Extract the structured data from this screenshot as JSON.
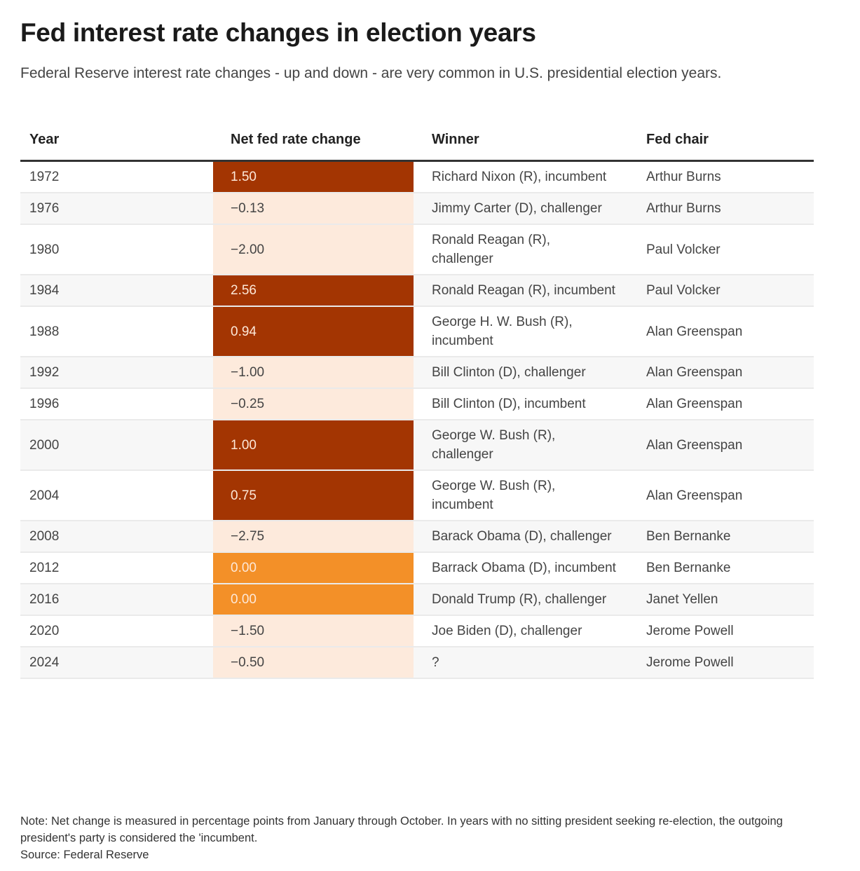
{
  "title": "Fed interest rate changes in election years",
  "subtitle": "Federal Reserve interest rate changes - up and down - are very common in U.S. presidential election years.",
  "colors": {
    "positive": "#a33502",
    "zero": "#f39028",
    "negative": "#fdeadc"
  },
  "chart_data": {
    "type": "table",
    "columns": [
      "Year",
      "Net fed rate change",
      "Winner",
      "Fed chair"
    ],
    "rows": [
      {
        "year": "1972",
        "change": "1.50",
        "value": 1.5,
        "winner": "Richard Nixon (R), incumbent",
        "chair": "Arthur Burns"
      },
      {
        "year": "1976",
        "change": "−0.13",
        "value": -0.13,
        "winner": "Jimmy Carter (D), challenger",
        "chair": "Arthur Burns"
      },
      {
        "year": "1980",
        "change": "−2.00",
        "value": -2.0,
        "winner": "Ronald Reagan (R), challenger",
        "chair": "Paul Volcker"
      },
      {
        "year": "1984",
        "change": "2.56",
        "value": 2.56,
        "winner": "Ronald Reagan (R), incumbent",
        "chair": "Paul Volcker"
      },
      {
        "year": "1988",
        "change": "0.94",
        "value": 0.94,
        "winner": "George H. W. Bush (R), incumbent",
        "chair": "Alan Greenspan"
      },
      {
        "year": "1992",
        "change": "−1.00",
        "value": -1.0,
        "winner": "Bill Clinton (D), challenger",
        "chair": "Alan Greenspan"
      },
      {
        "year": "1996",
        "change": "−0.25",
        "value": -0.25,
        "winner": "Bill Clinton (D), incumbent",
        "chair": "Alan Greenspan"
      },
      {
        "year": "2000",
        "change": "1.00",
        "value": 1.0,
        "winner": "George W. Bush (R), challenger",
        "chair": "Alan Greenspan"
      },
      {
        "year": "2004",
        "change": "0.75",
        "value": 0.75,
        "winner": "George W. Bush (R), incumbent",
        "chair": "Alan Greenspan"
      },
      {
        "year": "2008",
        "change": "−2.75",
        "value": -2.75,
        "winner": "Barack Obama (D), challenger",
        "chair": "Ben Bernanke"
      },
      {
        "year": "2012",
        "change": "0.00",
        "value": 0.0,
        "winner": "Barrack Obama (D), incumbent",
        "chair": "Ben Bernanke"
      },
      {
        "year": "2016",
        "change": "0.00",
        "value": 0.0,
        "winner": "Donald Trump (R), challenger",
        "chair": "Janet Yellen"
      },
      {
        "year": "2020",
        "change": "−1.50",
        "value": -1.5,
        "winner": "Joe Biden (D), challenger",
        "chair": "Jerome Powell"
      },
      {
        "year": "2024",
        "change": "−0.50",
        "value": -0.5,
        "winner": "?",
        "chair": "Jerome Powell"
      }
    ]
  },
  "note": "Note: Net change is measured in percentage points from January through October. In years with no sitting president seeking re-election, the outgoing president's party is considered the 'incumbent.",
  "source": "Source: Federal Reserve"
}
